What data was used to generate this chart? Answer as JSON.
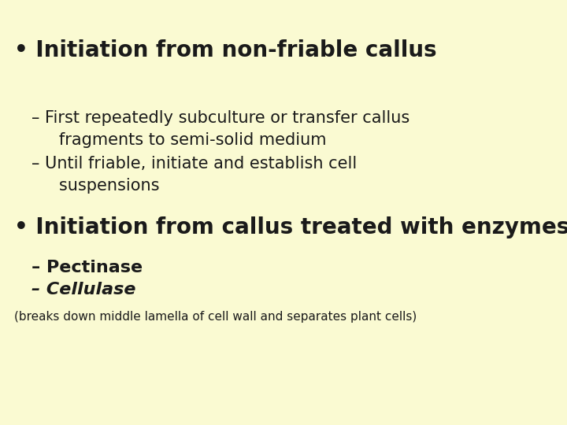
{
  "background_color": "#FAFAD2",
  "text_color": "#1a1a1a",
  "font_family": "Comic Sans MS",
  "bullet1": "Initiation from non-friable callus",
  "sub1a_line1": "– First repeatedly subculture or transfer callus",
  "sub1a_line2": "   fragments to semi-solid medium",
  "sub1b_line1": "– Until friable, initiate and establish cell",
  "sub1b_line2": "   suspensions",
  "bullet2": "Initiation from callus treated with enzymes",
  "sub2a": "– Pectinase",
  "sub2b": "– Cellulase",
  "footnote": "(breaks down middle lamella of cell wall and separates plant cells)",
  "figsize": [
    7.2,
    5.4
  ],
  "dpi": 100
}
